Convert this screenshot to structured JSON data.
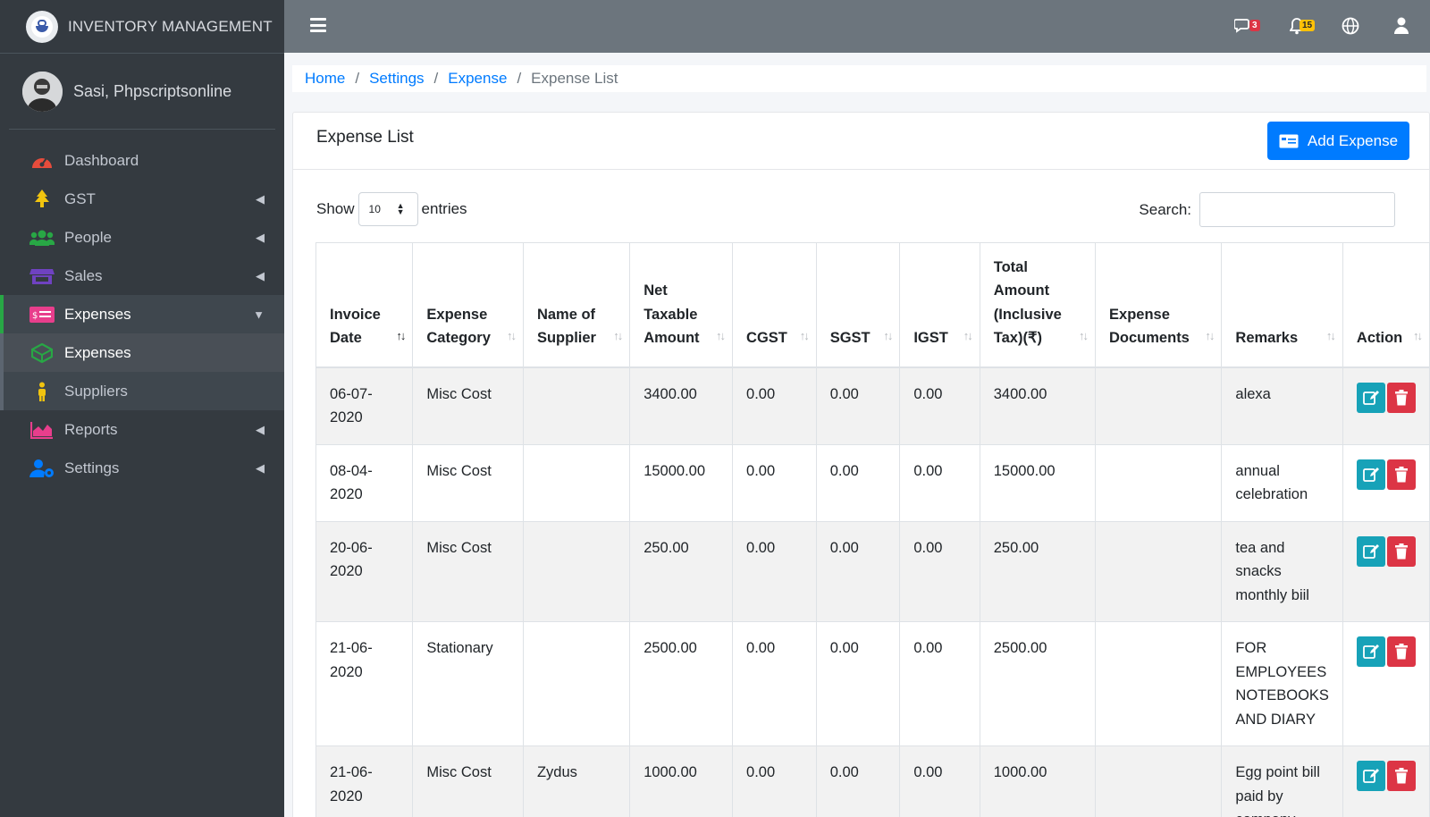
{
  "app": {
    "brand": "INVENTORY MANAGEMENT",
    "user_name": "Sasi, Phpscriptsonline"
  },
  "sidebar": {
    "items": [
      {
        "label": "Dashboard",
        "icon": "tachometer-icon",
        "color": "#e74c3c"
      },
      {
        "label": "GST",
        "icon": "tree-icon",
        "color": "#f1c40f"
      },
      {
        "label": "People",
        "icon": "users-icon",
        "color": "#28a745"
      },
      {
        "label": "Sales",
        "icon": "store-icon",
        "color": "#6f42c1"
      },
      {
        "label": "Expenses",
        "icon": "money-bill-icon",
        "color": "#e83e8c"
      },
      {
        "label": "Expenses",
        "icon": "cube-icon",
        "color": "#28a745"
      },
      {
        "label": "Suppliers",
        "icon": "person-icon",
        "color": "#f1c40f"
      },
      {
        "label": "Reports",
        "icon": "chart-area-icon",
        "color": "#e83e8c"
      },
      {
        "label": "Settings",
        "icon": "users-cog-icon",
        "color": "#007bff"
      }
    ]
  },
  "topbar": {
    "messages_count": "3",
    "notifications_count": "15"
  },
  "breadcrumb": {
    "home": "Home",
    "settings": "Settings",
    "expense": "Expense",
    "current": "Expense List"
  },
  "card": {
    "title": "Expense List",
    "add_button": "Add Expense"
  },
  "controls": {
    "show_label": "Show",
    "page_size": "10",
    "entries_label": "entries",
    "search_label": "Search:",
    "search_value": ""
  },
  "table": {
    "headers": [
      "Invoice Date",
      "Expense Category",
      "Name of Supplier",
      "Net Taxable Amount",
      "CGST",
      "SGST",
      "IGST",
      "Total Amount (Inclusive Tax)(₹)",
      "Expense Documents",
      "Remarks",
      "Action"
    ],
    "rows": [
      [
        "06-07-2020",
        "Misc Cost",
        "",
        "3400.00",
        "0.00",
        "0.00",
        "0.00",
        "3400.00",
        "",
        "alexa"
      ],
      [
        "08-04-2020",
        "Misc Cost",
        "",
        "15000.00",
        "0.00",
        "0.00",
        "0.00",
        "15000.00",
        "",
        "annual celebration"
      ],
      [
        "20-06-2020",
        "Misc Cost",
        "",
        "250.00",
        "0.00",
        "0.00",
        "0.00",
        "250.00",
        "",
        "tea and snacks monthly biil"
      ],
      [
        "21-06-2020",
        "Stationary",
        "",
        "2500.00",
        "0.00",
        "0.00",
        "0.00",
        "2500.00",
        "",
        "FOR EMPLOYEES NOTEBOOKS AND DIARY"
      ],
      [
        "21-06-2020",
        "Misc Cost",
        "Zydus",
        "1000.00",
        "0.00",
        "0.00",
        "0.00",
        "1000.00",
        "",
        "Egg point bill paid by company"
      ]
    ]
  },
  "colors": {
    "sidebar_bg": "#343a40",
    "topbar_bg": "#6c757d",
    "primary": "#007bff",
    "edit": "#17a2b8",
    "delete": "#dc3545",
    "active_accent": "#28a745"
  }
}
